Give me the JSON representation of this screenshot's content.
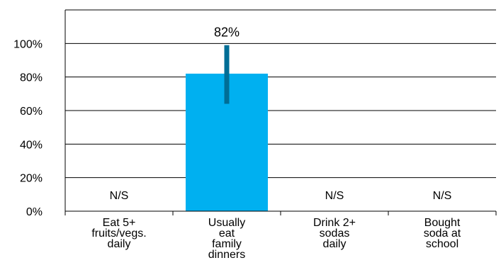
{
  "chart_data": {
    "type": "bar",
    "categories": [
      [
        "Eat 5+",
        "fruits/vegs.",
        "daily"
      ],
      [
        "Usually",
        "eat",
        "family",
        "dinners"
      ],
      [
        "Drink 2+",
        "sodas",
        "daily"
      ],
      [
        "Bought",
        "soda at",
        "school"
      ]
    ],
    "values": [
      null,
      82,
      null,
      null
    ],
    "error_bars": [
      null,
      [
        64,
        99
      ],
      null,
      null
    ],
    "data_labels": [
      "N/S",
      "82%",
      "N/S",
      "N/S"
    ],
    "y_ticks": [
      "0%",
      "20%",
      "40%",
      "60%",
      "80%",
      "100%"
    ],
    "ylim": [
      0,
      120
    ],
    "title": "",
    "xlabel": "",
    "ylabel": "",
    "grid": true,
    "colors": {
      "bar": "#00b0f0",
      "error_bar": "#006e96",
      "grid": "#000000"
    }
  }
}
